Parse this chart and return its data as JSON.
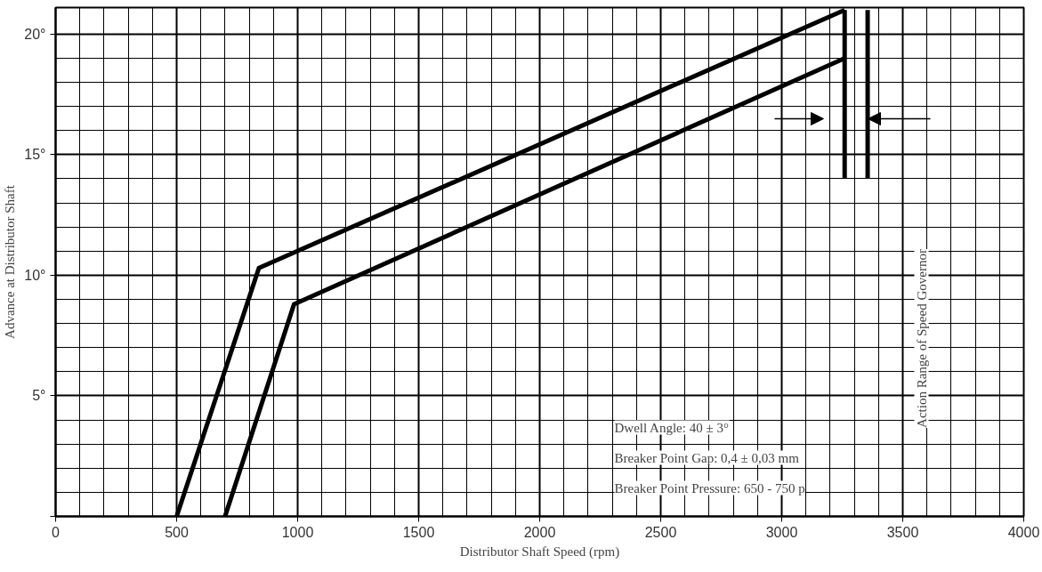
{
  "chart_data": {
    "type": "line",
    "xlabel": "Distributor Shaft Speed (rpm)",
    "ylabel": "Advance at Distributor Shaft",
    "series": [
      {
        "color": "#000000",
        "x": [
          500,
          840,
          3260
        ],
        "values": [
          0,
          10.3,
          21
        ]
      },
      {
        "color": "#000000",
        "x": [
          700,
          985,
          3260
        ],
        "values": [
          0,
          8.8,
          19
        ]
      },
      {
        "color": "#000000",
        "x": [
          3260,
          3260
        ],
        "values": [
          14,
          21
        ]
      },
      {
        "color": "#000000",
        "x": [
          3355,
          3355
        ],
        "values": [
          14,
          21
        ]
      }
    ],
    "xlim": [
      0,
      4000
    ],
    "ylim": [
      0,
      21.1
    ],
    "xticks": [
      0,
      500,
      1000,
      1500,
      2000,
      2500,
      3000,
      3500,
      4000
    ],
    "yticks": [
      {
        "value": 0,
        "label": null
      },
      {
        "value": 5,
        "label": "5°"
      },
      {
        "value": 10,
        "label": "10°"
      },
      {
        "value": 15,
        "label": "15°"
      },
      {
        "value": 20,
        "label": "20°"
      }
    ],
    "grid": true,
    "annotations": [
      "Dwell Angle: 40 ± 3°",
      "Breaker Point Gap: 0,4 ± 0,03 mm",
      "Breaker Point Pressure: 650 - 750 p",
      "Action Range of Speed Governor"
    ]
  }
}
